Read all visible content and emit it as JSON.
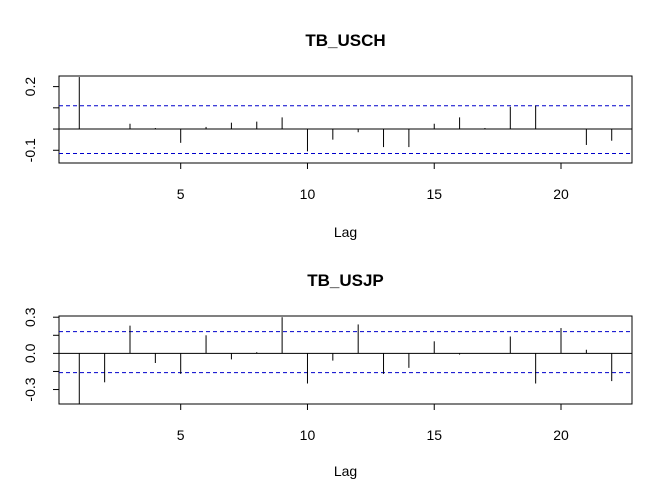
{
  "chart_data": [
    {
      "type": "bar",
      "title": "TB_USCH",
      "xlabel": "Lag",
      "ylabel": "",
      "xlim": [
        0.2,
        22.8
      ],
      "ylim": [
        -0.16,
        0.25
      ],
      "x_ticks": [
        5,
        10,
        15,
        20
      ],
      "y_ticks": [
        -0.1,
        0.0,
        0.1,
        0.2
      ],
      "y_tick_labels": [
        "-0.1",
        "",
        "",
        "0.2"
      ],
      "ci": [
        0.11,
        -0.115
      ],
      "ci_color": "#0000cc",
      "grid": false,
      "x": [
        1,
        2,
        3,
        4,
        5,
        6,
        7,
        8,
        9,
        10,
        11,
        12,
        13,
        14,
        15,
        16,
        17,
        18,
        19,
        20,
        21,
        22
      ],
      "values": [
        0.245,
        0.0,
        0.025,
        0.005,
        -0.065,
        0.01,
        0.03,
        0.035,
        0.055,
        -0.105,
        -0.05,
        -0.015,
        -0.085,
        -0.085,
        0.025,
        0.055,
        0.005,
        0.105,
        0.11,
        0.0,
        -0.075,
        -0.055
      ]
    },
    {
      "type": "bar",
      "title": "TB_USJP",
      "xlabel": "Lag",
      "ylabel": "",
      "xlim": [
        0.2,
        22.8
      ],
      "ylim": [
        -0.42,
        0.31
      ],
      "x_ticks": [
        5,
        10,
        15,
        20
      ],
      "y_ticks": [
        -0.3,
        0.0,
        0.3
      ],
      "y_tick_labels": [
        "-0.3",
        "0.0",
        "0.3"
      ],
      "extra_y_ticks": [
        -0.15,
        0.15
      ],
      "ci": [
        0.18,
        -0.16
      ],
      "ci_color": "#0000cc",
      "grid": false,
      "x": [
        1,
        2,
        3,
        4,
        5,
        6,
        7,
        8,
        9,
        10,
        11,
        12,
        13,
        14,
        15,
        16,
        17,
        18,
        19,
        20,
        21,
        22
      ],
      "values": [
        -0.42,
        -0.24,
        0.23,
        -0.08,
        -0.17,
        0.15,
        -0.05,
        0.01,
        0.3,
        -0.25,
        -0.06,
        0.24,
        -0.17,
        -0.12,
        0.1,
        -0.01,
        0.0,
        0.14,
        -0.25,
        0.21,
        0.03,
        -0.23
      ]
    }
  ]
}
